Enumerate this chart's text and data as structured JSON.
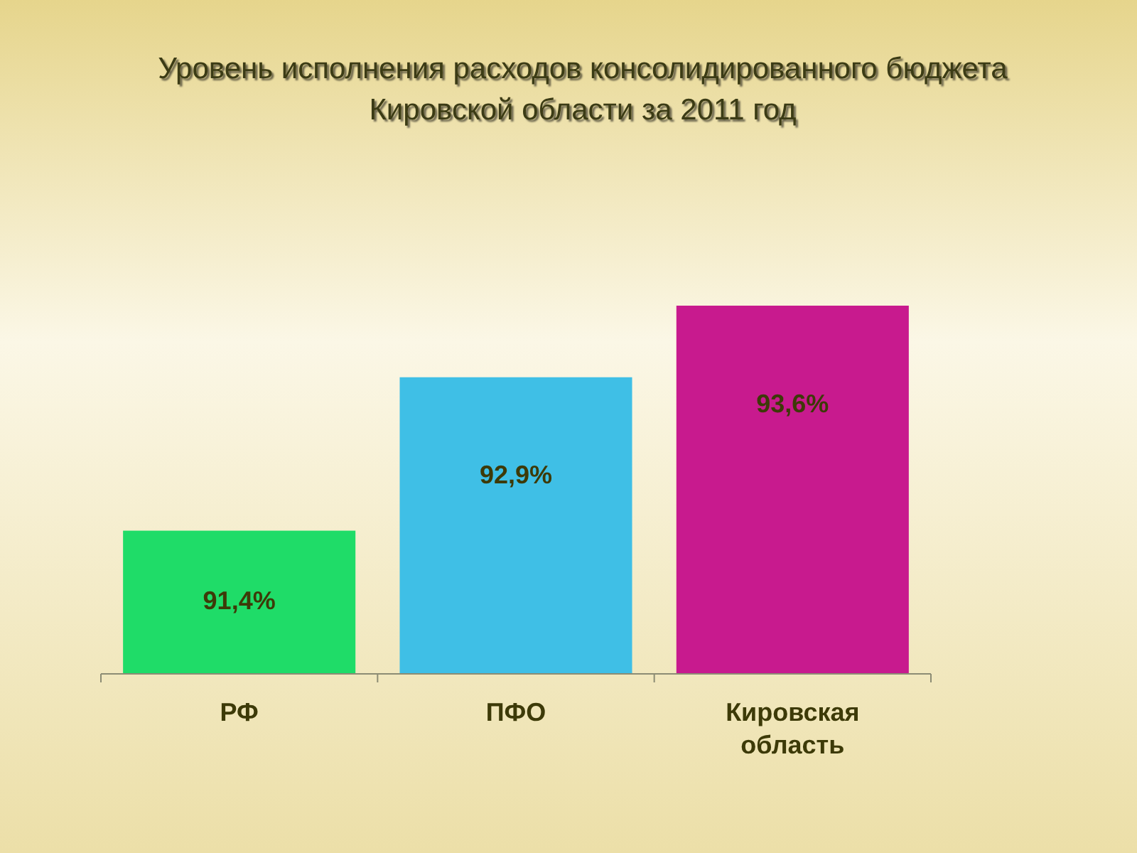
{
  "chart_data": {
    "type": "bar",
    "title": "Уровень исполнения расходов консолидированного бюджета Кировской области за 2011 год",
    "categories": [
      "РФ",
      "ПФО",
      "Кировская область"
    ],
    "values": [
      91.4,
      92.9,
      93.6
    ],
    "colors": [
      "#1fdc68",
      "#3fbfe6",
      "#c81a8e"
    ],
    "value_labels": [
      "91,4%",
      "92,9%",
      "93,6%"
    ],
    "ylim": [
      90,
      93.6
    ],
    "tick_labels": "x"
  }
}
